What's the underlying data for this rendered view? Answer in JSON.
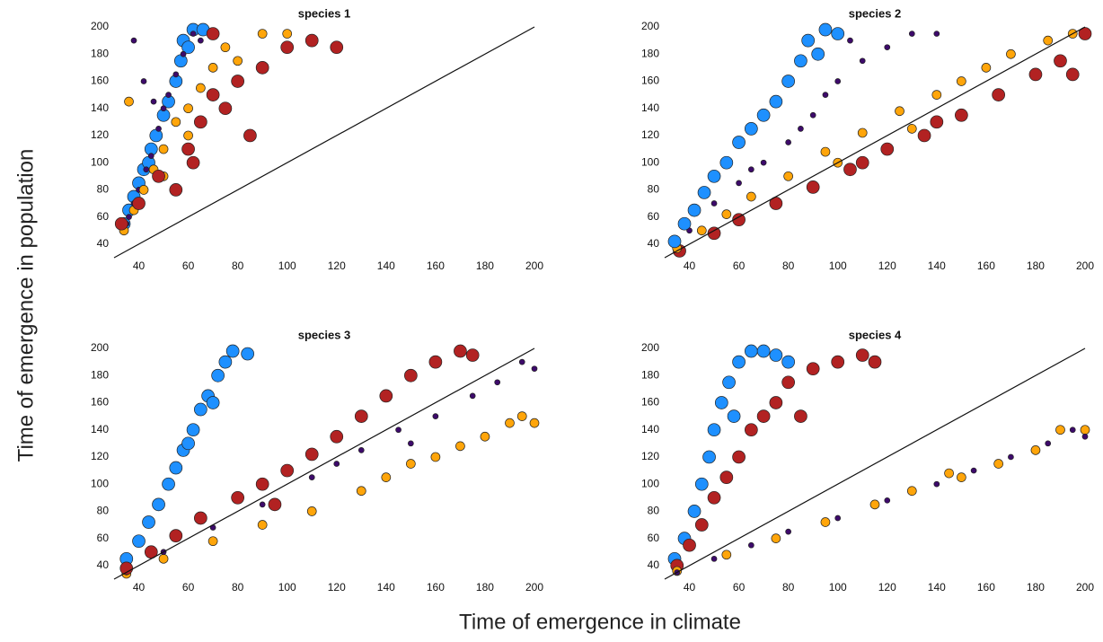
{
  "x_label": "Time of emergence in climate",
  "y_label": "Time of emergence in population",
  "chart_data": [
    {
      "type": "scatter",
      "title": "species 1",
      "xlim": [
        30,
        200
      ],
      "ylim": [
        30,
        200
      ],
      "xticks": [
        40,
        60,
        80,
        100,
        120,
        140,
        160,
        180,
        200
      ],
      "yticks": [
        40,
        60,
        80,
        100,
        120,
        140,
        160,
        180,
        200
      ],
      "diagonal": true,
      "series": [
        {
          "color": "#1e90ff",
          "marker": "large",
          "x": [
            34,
            36,
            38,
            40,
            42,
            45,
            47,
            50,
            52,
            55,
            57,
            58,
            62,
            66,
            60,
            44
          ],
          "y": [
            55,
            65,
            75,
            85,
            95,
            110,
            120,
            135,
            145,
            160,
            175,
            190,
            198,
            198,
            185,
            100
          ]
        },
        {
          "color": "#3d0a6b",
          "marker": "small",
          "x": [
            35,
            38,
            40,
            43,
            45,
            48,
            50,
            52,
            55,
            58,
            62,
            38,
            46,
            42,
            65,
            36
          ],
          "y": [
            55,
            70,
            80,
            95,
            105,
            125,
            140,
            150,
            165,
            180,
            195,
            190,
            145,
            160,
            190,
            60
          ]
        },
        {
          "color": "#ffa50a",
          "marker": "medium",
          "x": [
            34,
            38,
            42,
            46,
            50,
            55,
            60,
            65,
            70,
            80,
            90,
            100,
            36,
            75,
            60,
            50
          ],
          "y": [
            50,
            65,
            80,
            95,
            110,
            130,
            140,
            155,
            170,
            175,
            195,
            195,
            145,
            185,
            120,
            90
          ]
        },
        {
          "color": "#b22222",
          "marker": "large",
          "x": [
            33,
            40,
            48,
            55,
            60,
            65,
            70,
            75,
            80,
            85,
            90,
            100,
            110,
            120,
            70,
            62
          ],
          "y": [
            55,
            70,
            90,
            80,
            110,
            130,
            150,
            140,
            160,
            120,
            170,
            185,
            190,
            185,
            195,
            100
          ]
        }
      ]
    },
    {
      "type": "scatter",
      "title": "species 2",
      "xlim": [
        30,
        200
      ],
      "ylim": [
        30,
        200
      ],
      "xticks": [
        40,
        60,
        80,
        100,
        120,
        140,
        160,
        180,
        200
      ],
      "yticks": [
        40,
        60,
        80,
        100,
        120,
        140,
        160,
        180,
        200
      ],
      "diagonal": true,
      "series": [
        {
          "color": "#b22222",
          "marker": "large",
          "x": [
            36,
            50,
            60,
            75,
            90,
            105,
            120,
            135,
            150,
            165,
            180,
            190,
            200,
            195,
            110,
            140
          ],
          "y": [
            35,
            48,
            58,
            70,
            82,
            95,
            110,
            120,
            135,
            150,
            165,
            175,
            195,
            165,
            100,
            130
          ]
        },
        {
          "color": "#ffa50a",
          "marker": "medium",
          "x": [
            35,
            45,
            55,
            65,
            80,
            95,
            110,
            125,
            140,
            150,
            160,
            170,
            185,
            195,
            100,
            130
          ],
          "y": [
            37,
            50,
            62,
            75,
            90,
            108,
            122,
            138,
            150,
            160,
            170,
            180,
            190,
            195,
            100,
            125
          ]
        },
        {
          "color": "#3d0a6b",
          "marker": "small",
          "x": [
            35,
            40,
            50,
            60,
            70,
            80,
            90,
            95,
            100,
            110,
            120,
            130,
            140,
            105,
            85,
            65
          ],
          "y": [
            40,
            50,
            70,
            85,
            100,
            115,
            135,
            150,
            160,
            175,
            185,
            195,
            195,
            190,
            125,
            95
          ]
        },
        {
          "color": "#1e90ff",
          "marker": "large",
          "x": [
            34,
            38,
            42,
            46,
            50,
            55,
            60,
            65,
            70,
            75,
            80,
            85,
            88,
            95,
            100,
            92
          ],
          "y": [
            42,
            55,
            65,
            78,
            90,
            100,
            115,
            125,
            135,
            145,
            160,
            175,
            190,
            198,
            195,
            180
          ]
        }
      ]
    },
    {
      "type": "scatter",
      "title": "species 3",
      "xlim": [
        30,
        200
      ],
      "ylim": [
        30,
        200
      ],
      "xticks": [
        40,
        60,
        80,
        100,
        120,
        140,
        160,
        180,
        200
      ],
      "yticks": [
        40,
        60,
        80,
        100,
        120,
        140,
        160,
        180,
        200
      ],
      "diagonal": true,
      "series": [
        {
          "color": "#1e90ff",
          "marker": "large",
          "x": [
            35,
            40,
            44,
            48,
            52,
            55,
            58,
            62,
            65,
            68,
            72,
            75,
            78,
            84,
            70,
            60
          ],
          "y": [
            45,
            58,
            72,
            85,
            100,
            112,
            125,
            140,
            155,
            165,
            180,
            190,
            198,
            196,
            160,
            130
          ]
        },
        {
          "color": "#ffa50a",
          "marker": "medium",
          "x": [
            35,
            50,
            70,
            90,
            110,
            130,
            140,
            150,
            160,
            170,
            180,
            190,
            200,
            195
          ],
          "y": [
            34,
            45,
            58,
            70,
            80,
            95,
            105,
            115,
            120,
            128,
            135,
            145,
            145,
            150
          ]
        },
        {
          "color": "#3d0a6b",
          "marker": "small",
          "x": [
            35,
            50,
            70,
            90,
            110,
            130,
            145,
            160,
            175,
            185,
            195,
            200,
            120,
            150
          ],
          "y": [
            35,
            50,
            68,
            85,
            105,
            125,
            140,
            150,
            165,
            175,
            190,
            185,
            115,
            130
          ]
        },
        {
          "color": "#b22222",
          "marker": "large",
          "x": [
            35,
            45,
            55,
            65,
            80,
            90,
            100,
            110,
            120,
            130,
            140,
            150,
            160,
            170,
            175,
            95
          ],
          "y": [
            38,
            50,
            62,
            75,
            90,
            100,
            110,
            122,
            135,
            150,
            165,
            180,
            190,
            198,
            195,
            85
          ]
        }
      ]
    },
    {
      "type": "scatter",
      "title": "species 4",
      "xlim": [
        30,
        200
      ],
      "ylim": [
        30,
        200
      ],
      "xticks": [
        40,
        60,
        80,
        100,
        120,
        140,
        160,
        180,
        200
      ],
      "yticks": [
        40,
        60,
        80,
        100,
        120,
        140,
        160,
        180,
        200
      ],
      "diagonal": true,
      "series": [
        {
          "color": "#1e90ff",
          "marker": "large",
          "x": [
            34,
            38,
            42,
            45,
            48,
            50,
            53,
            56,
            60,
            65,
            70,
            75,
            80,
            58
          ],
          "y": [
            45,
            60,
            80,
            100,
            120,
            140,
            160,
            175,
            190,
            198,
            198,
            195,
            190,
            150
          ]
        },
        {
          "color": "#b22222",
          "marker": "large",
          "x": [
            35,
            40,
            45,
            50,
            55,
            60,
            65,
            70,
            75,
            80,
            90,
            100,
            110,
            115,
            85
          ],
          "y": [
            40,
            55,
            70,
            90,
            105,
            120,
            140,
            150,
            160,
            175,
            185,
            190,
            195,
            190,
            150
          ]
        },
        {
          "color": "#ffa50a",
          "marker": "medium",
          "x": [
            35,
            55,
            75,
            95,
            115,
            130,
            150,
            165,
            180,
            190,
            200,
            145
          ],
          "y": [
            36,
            48,
            60,
            72,
            85,
            95,
            105,
            115,
            125,
            140,
            140,
            108
          ]
        },
        {
          "color": "#3d0a6b",
          "marker": "small",
          "x": [
            35,
            50,
            65,
            80,
            100,
            120,
            140,
            155,
            170,
            185,
            195,
            200
          ],
          "y": [
            35,
            45,
            55,
            65,
            75,
            88,
            100,
            110,
            120,
            130,
            140,
            135
          ]
        }
      ]
    }
  ]
}
